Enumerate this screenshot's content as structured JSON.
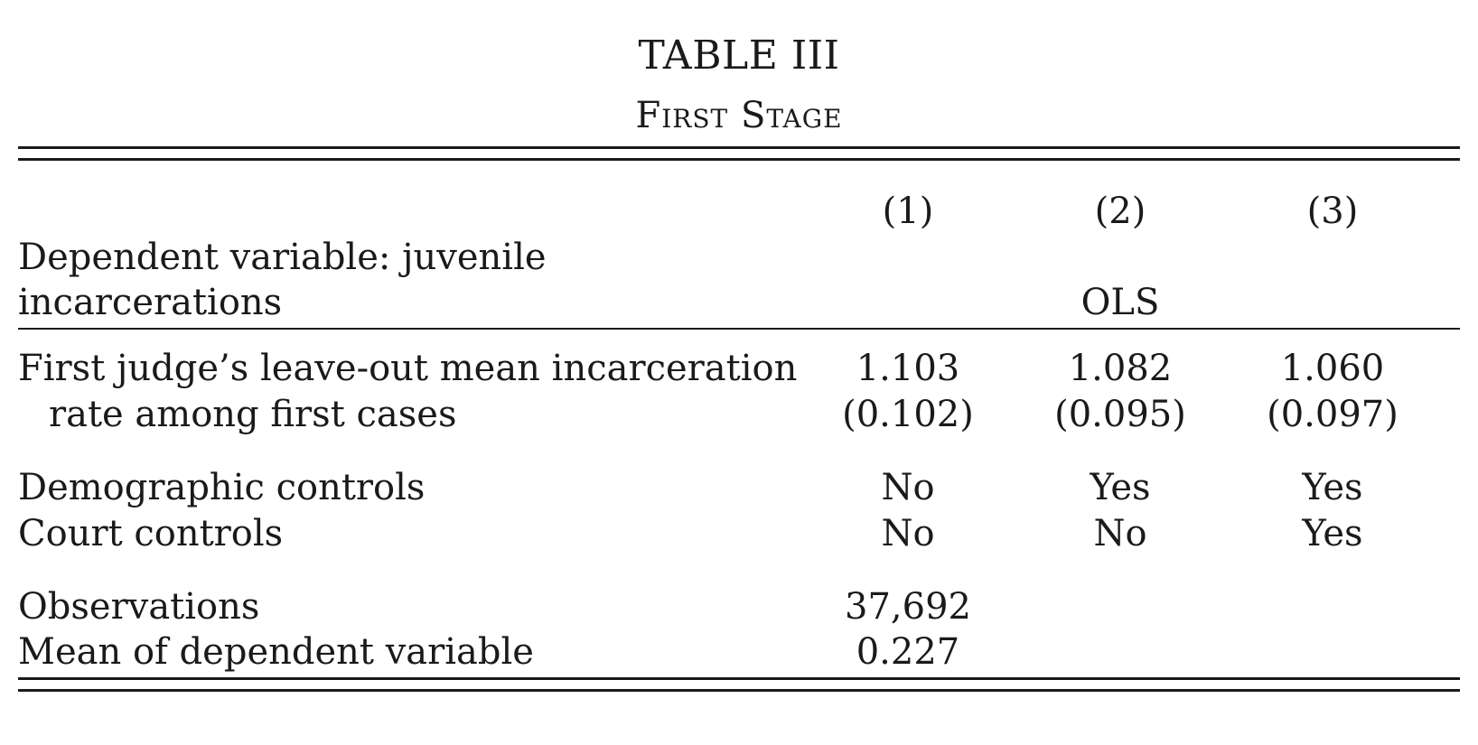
{
  "table": {
    "title": "TABLE III",
    "subtitle": "First Stage",
    "columns": [
      "(1)",
      "(2)",
      "(3)"
    ],
    "dependent_variable_line1": "Dependent variable: juvenile",
    "dependent_variable_line2": "incarcerations",
    "estimator": "OLS",
    "rows": {
      "first_judge": {
        "label_line1": "First judge’s leave-out mean incarceration",
        "label_line2": "rate among first cases",
        "coefficients": [
          "1.103",
          "1.082",
          "1.060"
        ],
        "standard_errors": [
          "(0.102)",
          "(0.095)",
          "(0.097)"
        ]
      },
      "demographic_controls": {
        "label": "Demographic controls",
        "values": [
          "No",
          "Yes",
          "Yes"
        ]
      },
      "court_controls": {
        "label": "Court controls",
        "values": [
          "No",
          "No",
          "Yes"
        ]
      },
      "observations": {
        "label": "Observations",
        "value": "37,692"
      },
      "mean_dependent": {
        "label": "Mean of dependent variable",
        "value": "0.227"
      }
    }
  }
}
